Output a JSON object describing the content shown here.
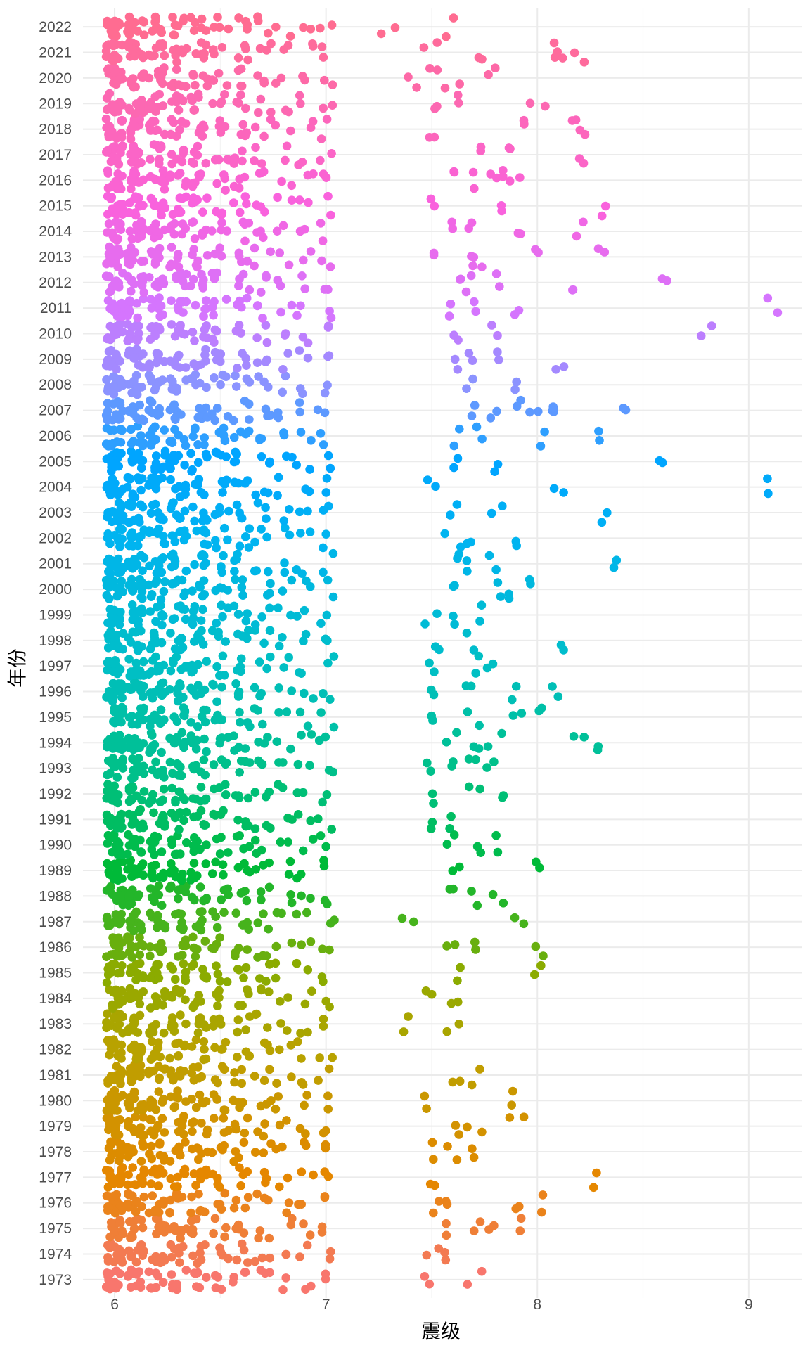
{
  "chart_data": {
    "type": "scatter",
    "subtype": "jitter-strip",
    "title": "",
    "xlabel": "震级",
    "ylabel": "年份",
    "xlim": [
      5.85,
      9.25
    ],
    "ylim": [
      1972.5,
      2022.5
    ],
    "x_ticks": [
      6,
      7,
      8,
      9
    ],
    "y_ticks": [
      1973,
      1974,
      1975,
      1976,
      1977,
      1978,
      1979,
      1980,
      1981,
      1982,
      1983,
      1984,
      1985,
      1986,
      1987,
      1988,
      1989,
      1990,
      1991,
      1992,
      1993,
      1994,
      1995,
      1996,
      1997,
      1998,
      1999,
      2000,
      2001,
      2002,
      2003,
      2004,
      2005,
      2006,
      2007,
      2008,
      2009,
      2010,
      2011,
      2012,
      2013,
      2014,
      2015,
      2016,
      2017,
      2018,
      2019,
      2020,
      2021,
      2022
    ],
    "grid": true,
    "legend": "none",
    "color_by": "year",
    "colors": {
      "1973": "#F8766D",
      "1977": "#E58700",
      "1982": "#B8A200",
      "1985": "#8BAB00",
      "1989": "#00BA38",
      "1993": "#00C08B",
      "1997": "#00BFC4",
      "2002": "#00B4F0",
      "2005": "#00A5FF",
      "2008": "#8B93FF",
      "2011": "#D575FE",
      "2015": "#F962DD",
      "2022": "#FF6C91"
    },
    "background": "#ffffff",
    "grid_color": "#ebebeb",
    "base_counts": [
      {
        "magnitude": 6.0,
        "count_per_year": 14
      },
      {
        "magnitude": 6.1,
        "count_per_year": 11
      },
      {
        "magnitude": 6.2,
        "count_per_year": 8
      },
      {
        "magnitude": 6.3,
        "count_per_year": 7
      },
      {
        "magnitude": 6.4,
        "count_per_year": 6
      },
      {
        "magnitude": 6.5,
        "count_per_year": 4
      },
      {
        "magnitude": 6.6,
        "count_per_year": 4
      },
      {
        "magnitude": 6.7,
        "count_per_year": 3
      },
      {
        "magnitude": 6.8,
        "count_per_year": 2
      },
      {
        "magnitude": 6.9,
        "count_per_year": 2
      },
      {
        "magnitude": 7.0,
        "count_per_year": 2
      }
    ],
    "large_events": [
      {
        "year": 2022,
        "magnitude": 7.3
      },
      {
        "year": 2022,
        "magnitude": 7.6
      },
      {
        "year": 2021,
        "magnitude": 7.5
      },
      {
        "year": 2021,
        "magnitude": 7.7
      },
      {
        "year": 2021,
        "magnitude": 8.1
      },
      {
        "year": 2021,
        "magnitude": 8.1
      },
      {
        "year": 2021,
        "magnitude": 8.2
      },
      {
        "year": 2020,
        "magnitude": 7.4
      },
      {
        "year": 2020,
        "magnitude": 7.5
      },
      {
        "year": 2020,
        "magnitude": 7.6
      },
      {
        "year": 2020,
        "magnitude": 7.8
      },
      {
        "year": 2019,
        "magnitude": 7.5
      },
      {
        "year": 2019,
        "magnitude": 7.6
      },
      {
        "year": 2019,
        "magnitude": 8.0
      },
      {
        "year": 2018,
        "magnitude": 7.5
      },
      {
        "year": 2018,
        "magnitude": 7.9
      },
      {
        "year": 2018,
        "magnitude": 8.2
      },
      {
        "year": 2018,
        "magnitude": 8.2
      },
      {
        "year": 2017,
        "magnitude": 7.7
      },
      {
        "year": 2017,
        "magnitude": 7.9
      },
      {
        "year": 2017,
        "magnitude": 8.2
      },
      {
        "year": 2016,
        "magnitude": 7.6
      },
      {
        "year": 2016,
        "magnitude": 7.7
      },
      {
        "year": 2016,
        "magnitude": 7.8
      },
      {
        "year": 2016,
        "magnitude": 7.8
      },
      {
        "year": 2016,
        "magnitude": 7.9
      },
      {
        "year": 2015,
        "magnitude": 7.5
      },
      {
        "year": 2015,
        "magnitude": 7.8
      },
      {
        "year": 2015,
        "magnitude": 8.3
      },
      {
        "year": 2014,
        "magnitude": 7.6
      },
      {
        "year": 2014,
        "magnitude": 7.7
      },
      {
        "year": 2014,
        "magnitude": 7.9
      },
      {
        "year": 2014,
        "magnitude": 8.2
      },
      {
        "year": 2013,
        "magnitude": 7.5
      },
      {
        "year": 2013,
        "magnitude": 7.7
      },
      {
        "year": 2013,
        "magnitude": 7.7
      },
      {
        "year": 2013,
        "magnitude": 8.0
      },
      {
        "year": 2013,
        "magnitude": 8.3
      },
      {
        "year": 2012,
        "magnitude": 7.6
      },
      {
        "year": 2012,
        "magnitude": 7.7
      },
      {
        "year": 2012,
        "magnitude": 7.8
      },
      {
        "year": 2012,
        "magnitude": 8.2
      },
      {
        "year": 2012,
        "magnitude": 8.6
      },
      {
        "year": 2011,
        "magnitude": 7.6
      },
      {
        "year": 2011,
        "magnitude": 7.7
      },
      {
        "year": 2011,
        "magnitude": 7.9
      },
      {
        "year": 2011,
        "magnitude": 9.1
      },
      {
        "year": 2010,
        "magnitude": 7.6
      },
      {
        "year": 2010,
        "magnitude": 7.8
      },
      {
        "year": 2010,
        "magnitude": 8.8
      },
      {
        "year": 2009,
        "magnitude": 7.6
      },
      {
        "year": 2009,
        "magnitude": 7.7
      },
      {
        "year": 2009,
        "magnitude": 7.8
      },
      {
        "year": 2009,
        "magnitude": 8.1
      },
      {
        "year": 2008,
        "magnitude": 7.7
      },
      {
        "year": 2008,
        "magnitude": 7.9
      },
      {
        "year": 2007,
        "magnitude": 7.7
      },
      {
        "year": 2007,
        "magnitude": 7.8
      },
      {
        "year": 2007,
        "magnitude": 7.9
      },
      {
        "year": 2007,
        "magnitude": 8.0
      },
      {
        "year": 2007,
        "magnitude": 8.1
      },
      {
        "year": 2007,
        "magnitude": 8.1
      },
      {
        "year": 2007,
        "magnitude": 8.4
      },
      {
        "year": 2006,
        "magnitude": 7.6
      },
      {
        "year": 2006,
        "magnitude": 7.7
      },
      {
        "year": 2006,
        "magnitude": 8.0
      },
      {
        "year": 2006,
        "magnitude": 8.3
      },
      {
        "year": 2005,
        "magnitude": 7.6
      },
      {
        "year": 2005,
        "magnitude": 7.8
      },
      {
        "year": 2005,
        "magnitude": 8.6
      },
      {
        "year": 2004,
        "magnitude": 7.5
      },
      {
        "year": 2004,
        "magnitude": 8.1
      },
      {
        "year": 2004,
        "magnitude": 9.1
      },
      {
        "year": 2003,
        "magnitude": 7.6
      },
      {
        "year": 2003,
        "magnitude": 7.8
      },
      {
        "year": 2003,
        "magnitude": 8.3
      },
      {
        "year": 2002,
        "magnitude": 7.6
      },
      {
        "year": 2002,
        "magnitude": 7.7
      },
      {
        "year": 2002,
        "magnitude": 7.9
      },
      {
        "year": 2001,
        "magnitude": 7.6
      },
      {
        "year": 2001,
        "magnitude": 7.7
      },
      {
        "year": 2001,
        "magnitude": 7.8
      },
      {
        "year": 2001,
        "magnitude": 8.4
      },
      {
        "year": 2000,
        "magnitude": 7.6
      },
      {
        "year": 2000,
        "magnitude": 7.8
      },
      {
        "year": 2000,
        "magnitude": 7.9
      },
      {
        "year": 2000,
        "magnitude": 8.0
      },
      {
        "year": 1999,
        "magnitude": 7.5
      },
      {
        "year": 1999,
        "magnitude": 7.6
      },
      {
        "year": 1999,
        "magnitude": 7.7
      },
      {
        "year": 1998,
        "magnitude": 7.5
      },
      {
        "year": 1998,
        "magnitude": 7.7
      },
      {
        "year": 1998,
        "magnitude": 8.1
      },
      {
        "year": 1997,
        "magnitude": 7.5
      },
      {
        "year": 1997,
        "magnitude": 7.7
      },
      {
        "year": 1997,
        "magnitude": 7.8
      },
      {
        "year": 1996,
        "magnitude": 7.5
      },
      {
        "year": 1996,
        "magnitude": 7.7
      },
      {
        "year": 1996,
        "magnitude": 7.9
      },
      {
        "year": 1996,
        "magnitude": 8.1
      },
      {
        "year": 1995,
        "magnitude": 7.5
      },
      {
        "year": 1995,
        "magnitude": 7.7
      },
      {
        "year": 1995,
        "magnitude": 7.9
      },
      {
        "year": 1995,
        "magnitude": 8.0
      },
      {
        "year": 1994,
        "magnitude": 7.6
      },
      {
        "year": 1994,
        "magnitude": 7.7
      },
      {
        "year": 1994,
        "magnitude": 7.8
      },
      {
        "year": 1994,
        "magnitude": 8.2
      },
      {
        "year": 1994,
        "magnitude": 8.3
      },
      {
        "year": 1993,
        "magnitude": 7.5
      },
      {
        "year": 1993,
        "magnitude": 7.6
      },
      {
        "year": 1993,
        "magnitude": 7.7
      },
      {
        "year": 1993,
        "magnitude": 7.8
      },
      {
        "year": 1992,
        "magnitude": 7.5
      },
      {
        "year": 1992,
        "magnitude": 7.7
      },
      {
        "year": 1992,
        "magnitude": 7.8
      },
      {
        "year": 1991,
        "magnitude": 7.5
      },
      {
        "year": 1991,
        "magnitude": 7.6
      },
      {
        "year": 1990,
        "magnitude": 7.6
      },
      {
        "year": 1990,
        "magnitude": 7.7
      },
      {
        "year": 1990,
        "magnitude": 7.8
      },
      {
        "year": 1989,
        "magnitude": 7.6
      },
      {
        "year": 1989,
        "magnitude": 8.0
      },
      {
        "year": 1988,
        "magnitude": 7.6
      },
      {
        "year": 1988,
        "magnitude": 7.7
      },
      {
        "year": 1988,
        "magnitude": 7.8
      },
      {
        "year": 1987,
        "magnitude": 7.4
      },
      {
        "year": 1987,
        "magnitude": 7.9
      },
      {
        "year": 1986,
        "magnitude": 7.6
      },
      {
        "year": 1986,
        "magnitude": 7.7
      },
      {
        "year": 1986,
        "magnitude": 8.0
      },
      {
        "year": 1985,
        "magnitude": 7.6
      },
      {
        "year": 1985,
        "magnitude": 8.0
      },
      {
        "year": 1984,
        "magnitude": 7.5
      },
      {
        "year": 1984,
        "magnitude": 7.6
      },
      {
        "year": 1983,
        "magnitude": 7.4
      },
      {
        "year": 1983,
        "magnitude": 7.6
      },
      {
        "year": 1981,
        "magnitude": 7.6
      },
      {
        "year": 1981,
        "magnitude": 7.7
      },
      {
        "year": 1980,
        "magnitude": 7.5
      },
      {
        "year": 1980,
        "magnitude": 7.9
      },
      {
        "year": 1979,
        "magnitude": 7.6
      },
      {
        "year": 1979,
        "magnitude": 7.7
      },
      {
        "year": 1979,
        "magnitude": 7.9
      },
      {
        "year": 1978,
        "magnitude": 7.5
      },
      {
        "year": 1978,
        "magnitude": 7.6
      },
      {
        "year": 1978,
        "magnitude": 7.7
      },
      {
        "year": 1977,
        "magnitude": 7.5
      },
      {
        "year": 1977,
        "magnitude": 8.3
      },
      {
        "year": 1976,
        "magnitude": 7.5
      },
      {
        "year": 1976,
        "magnitude": 7.6
      },
      {
        "year": 1976,
        "magnitude": 7.9
      },
      {
        "year": 1976,
        "magnitude": 8.0
      },
      {
        "year": 1975,
        "magnitude": 7.6
      },
      {
        "year": 1975,
        "magnitude": 7.7
      },
      {
        "year": 1975,
        "magnitude": 7.8
      },
      {
        "year": 1975,
        "magnitude": 7.9
      },
      {
        "year": 1974,
        "magnitude": 7.5
      },
      {
        "year": 1974,
        "magnitude": 7.6
      },
      {
        "year": 1973,
        "magnitude": 7.5
      },
      {
        "year": 1973,
        "magnitude": 7.7
      }
    ]
  }
}
